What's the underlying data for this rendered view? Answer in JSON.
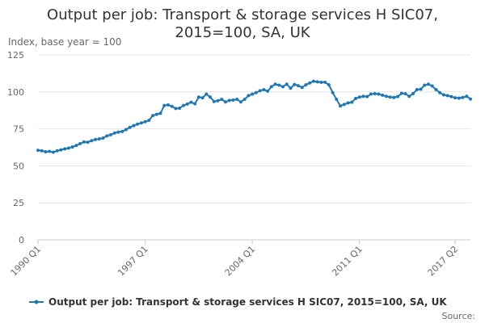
{
  "chart_data": {
    "type": "line",
    "title_lines": [
      "Output per job: Transport & storage services H SIC07,",
      "2015=100, SA, UK"
    ],
    "ylabel": "Index, base year = 100",
    "xlabel": "",
    "ylim": [
      0,
      125
    ],
    "y_ticks": [
      0,
      25,
      50,
      75,
      100,
      125
    ],
    "x_tick_labels": [
      "1990 Q1",
      "1997 Q1",
      "2004 Q1",
      "2011 Q1",
      "2017 Q2"
    ],
    "legend_position": "bottom",
    "grid": true,
    "series": [
      {
        "name": "Output per job: Transport & storage services H SIC07, 2015=100, SA, UK",
        "color": "#1f77b4",
        "start": "1990 Q1",
        "values": [
          60.5,
          60.2,
          59.5,
          59.8,
          59.2,
          60.2,
          60.8,
          61.5,
          62.0,
          62.8,
          63.8,
          65.0,
          66.2,
          66.0,
          67.0,
          67.8,
          68.2,
          68.8,
          70.2,
          71.0,
          72.2,
          72.8,
          73.2,
          74.5,
          76.0,
          77.2,
          78.2,
          79.0,
          79.8,
          80.8,
          84.0,
          84.8,
          85.5,
          90.8,
          91.2,
          90.2,
          88.8,
          89.0,
          90.8,
          91.8,
          93.0,
          92.0,
          96.5,
          96.0,
          98.5,
          96.5,
          93.5,
          94.0,
          95.0,
          93.2,
          94.2,
          94.5,
          95.0,
          93.2,
          95.0,
          97.5,
          98.5,
          99.5,
          100.8,
          101.5,
          100.5,
          103.5,
          105.2,
          104.5,
          103.5,
          105.2,
          102.5,
          105.0,
          104.2,
          103.0,
          104.8,
          106.0,
          107.2,
          106.8,
          106.5,
          106.5,
          104.8,
          99.5,
          95.0,
          90.5,
          91.5,
          92.5,
          93.0,
          95.5,
          96.5,
          97.0,
          96.8,
          98.5,
          98.8,
          98.5,
          97.8,
          97.0,
          96.5,
          96.2,
          96.8,
          99.0,
          98.8,
          97.0,
          98.8,
          101.5,
          101.8,
          104.5,
          105.2,
          104.0,
          101.5,
          99.5,
          98.0,
          97.5,
          96.8,
          96.0,
          95.8,
          96.2,
          97.0,
          95.2
        ]
      }
    ],
    "source": "Source:"
  }
}
